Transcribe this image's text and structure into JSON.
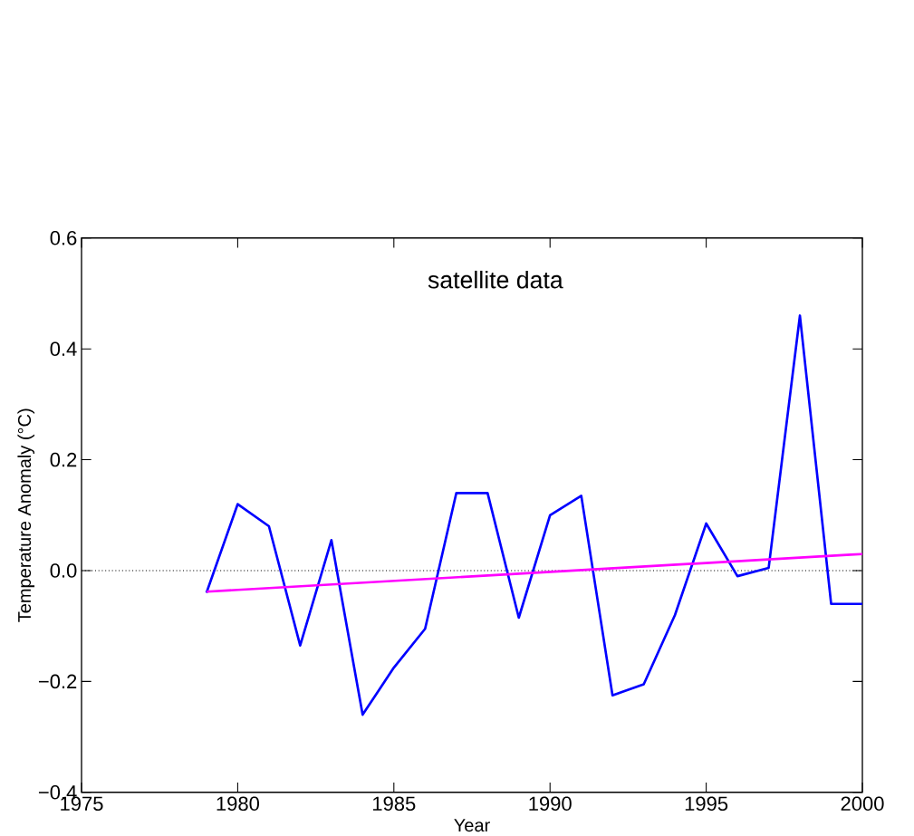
{
  "chart_data": {
    "type": "line",
    "xlabel": "Year",
    "ylabel": "Temperature Anomaly (°C)",
    "annotations": [
      "satellite data"
    ],
    "series": [
      {
        "color": "#0000ff",
        "x": [
          1979,
          1980,
          1981,
          1982,
          1983,
          1984,
          1985,
          1986,
          1987,
          1988,
          1989,
          1990,
          1991,
          1992,
          1993,
          1994,
          1995,
          1996,
          1997,
          1998,
          1999,
          2000
        ],
        "values": [
          -0.04,
          0.12,
          0.08,
          -0.135,
          0.055,
          -0.26,
          -0.175,
          -0.105,
          0.14,
          0.14,
          -0.085,
          0.1,
          0.135,
          -0.225,
          -0.205,
          -0.08,
          0.085,
          -0.01,
          0.005,
          0.46,
          -0.06,
          -0.06
        ]
      },
      {
        "color": "#ff00ff",
        "x": [
          1979,
          2000
        ],
        "values": [
          -0.038,
          0.03
        ]
      }
    ],
    "xlim": [
      1975,
      2000
    ],
    "xticks": [
      1975,
      1980,
      1985,
      1990,
      1995,
      2000
    ],
    "ylim": [
      -0.4,
      0.6
    ],
    "yticks": [
      {
        "value": -0.4,
        "label": "−0.4"
      },
      {
        "value": -0.2,
        "label": "−0.2"
      },
      {
        "value": 0,
        "label": "0.0"
      },
      {
        "value": 0.2,
        "label": "0.2"
      },
      {
        "value": 0.4,
        "label": "0.4"
      },
      {
        "value": 0.6,
        "label": "0.6"
      }
    ],
    "ref_lines": [
      {
        "axis": "y",
        "value": 0,
        "color": "#000000",
        "line_style": "dotted"
      }
    ],
    "grid": false,
    "marker": "none",
    "line_style": "solid"
  }
}
